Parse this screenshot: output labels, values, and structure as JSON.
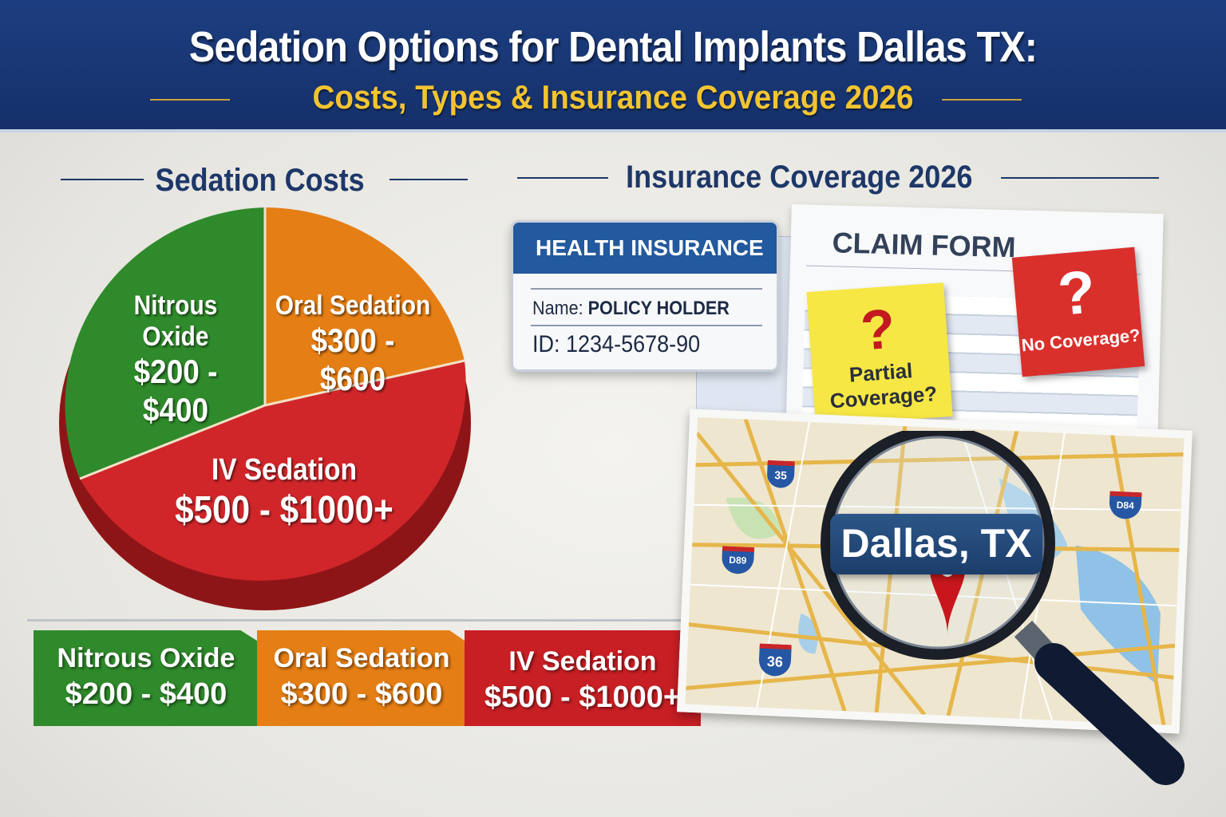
{
  "header": {
    "title": "Sedation Options for Dental Implants Dallas TX:",
    "subtitle": "Costs, Types & Insurance Coverage 2026"
  },
  "costs": {
    "heading": "Sedation Costs",
    "slices": [
      {
        "name": "Nitrous Oxide",
        "range": "$200 - $400",
        "color": "#2f8a2b"
      },
      {
        "name": "Oral Sedation",
        "range": "$300 - $600",
        "color": "#e57e14"
      },
      {
        "name": "IV Sedation",
        "range": "$500 - $1000+",
        "color": "#d0262a"
      }
    ]
  },
  "insurance": {
    "heading": "Insurance Coverage 2026",
    "card": {
      "title": "HEALTH INSURANCE",
      "name_label": "Name:",
      "name_value": "POLICY HOLDER",
      "id_label": "ID:",
      "id_value": "1234-5678-90"
    },
    "form_title": "CLAIM FORM",
    "notes": [
      {
        "mark": "?",
        "text": "Partial Coverage?"
      },
      {
        "mark": "?",
        "text": "No Coverage?"
      }
    ],
    "map": {
      "location": "Dallas, TX",
      "shields": [
        "35",
        "36",
        "D89",
        "D84"
      ]
    }
  }
}
